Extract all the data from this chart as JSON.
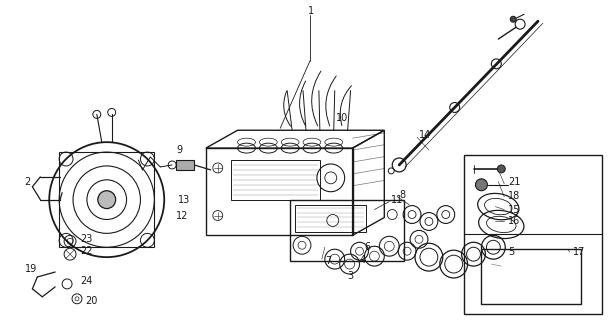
{
  "bg_color": "#ffffff",
  "line_color": "#1a1a1a",
  "fig_width": 6.1,
  "fig_height": 3.2,
  "dpi": 100,
  "label_fontsize": 7.0
}
